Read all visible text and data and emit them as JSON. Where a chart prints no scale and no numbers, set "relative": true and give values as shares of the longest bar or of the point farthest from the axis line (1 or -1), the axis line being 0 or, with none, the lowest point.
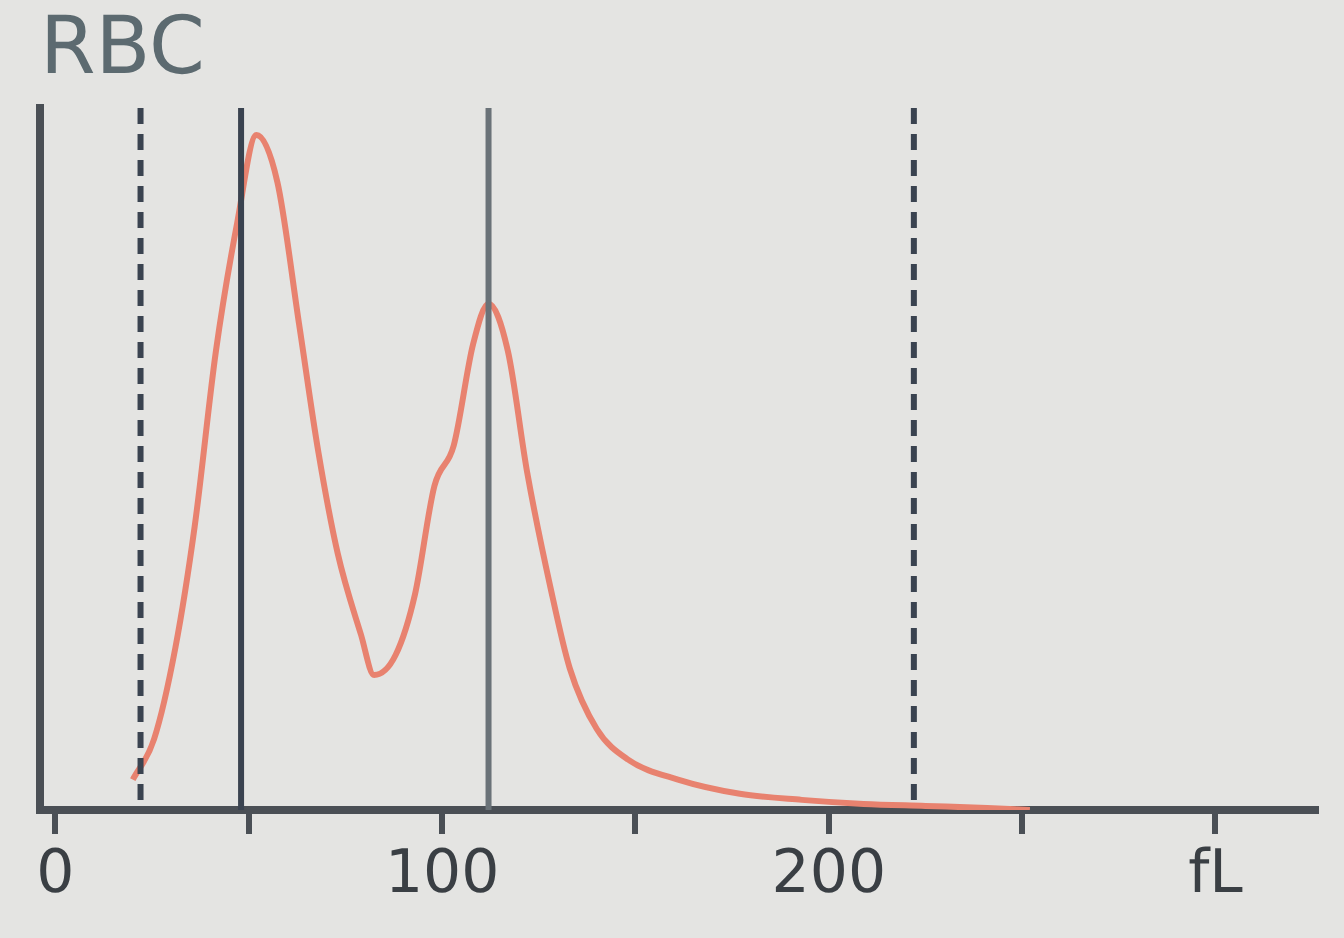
{
  "chart_data": {
    "type": "line",
    "title": "RBC",
    "relative": true,
    "xlim": [
      -4,
      326
    ],
    "xticks": [
      0,
      {
        "value": 50,
        "label": null
      },
      100,
      {
        "value": 150,
        "label": null
      },
      200,
      {
        "value": 250,
        "label": null
      },
      {
        "value": 300,
        "label": "fL"
      }
    ],
    "tick_labels": "x",
    "grid": false,
    "legend": false,
    "marker": "none",
    "line_style": "solid",
    "series": [
      {
        "color": "#e8826f",
        "x": [
          20,
          25.5,
          31,
          36,
          41.5,
          47,
          52,
          57.4,
          63,
          68,
          73,
          79,
          82.4,
          88,
          93,
          98,
          103,
          108,
          112,
          117,
          122,
          128,
          133,
          140,
          148,
          161,
          177,
          193,
          209,
          225,
          241,
          252
        ],
        "values": [
          0.045,
          0.105,
          0.24,
          0.42,
          0.68,
          0.87,
          1.0,
          0.93,
          0.72,
          0.53,
          0.38,
          0.26,
          0.2,
          0.23,
          0.32,
          0.48,
          0.54,
          0.69,
          0.75,
          0.68,
          0.5,
          0.33,
          0.21,
          0.12,
          0.075,
          0.045,
          0.024,
          0.015,
          0.009,
          0.006,
          0.003,
          0
        ]
      }
    ],
    "ref_lines": [
      {
        "axis": "x",
        "value": 22,
        "color": "#3a4350",
        "line_style": "dashed"
      },
      {
        "axis": "x",
        "value": 48,
        "color": "#3a4350",
        "line_style": "solid"
      },
      {
        "axis": "x",
        "value": 112,
        "color": "#6a7278",
        "line_style": "solid"
      },
      {
        "axis": "x",
        "value": 222,
        "color": "#3a4350",
        "line_style": "dashed"
      }
    ]
  }
}
